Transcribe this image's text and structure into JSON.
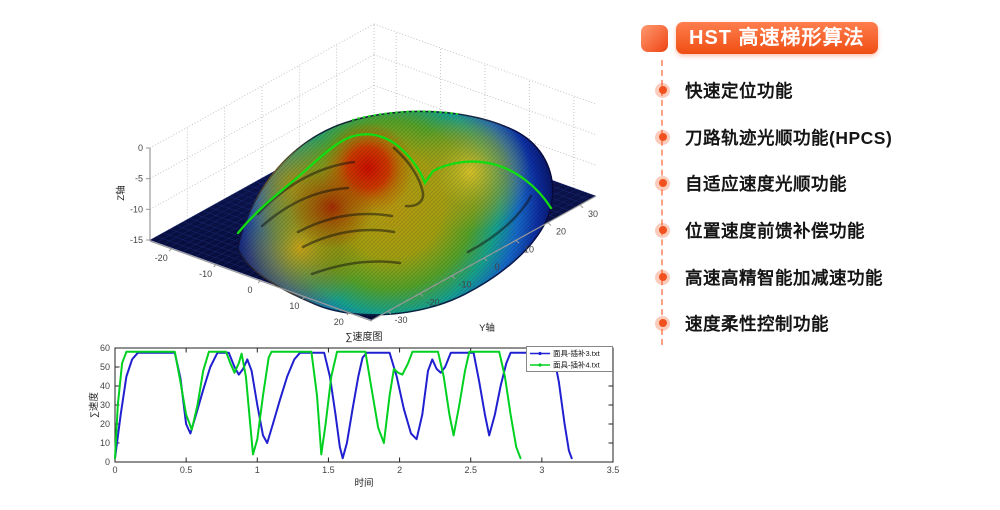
{
  "accent": {
    "orange": "#f1511f",
    "orange_light": "#ff8a5c",
    "dash_line": "#ffa184"
  },
  "panel": {
    "title": "HST 高速梯形算法",
    "items": [
      "快速定位功能",
      "刀路轨迹光顺功能(HPCS)",
      "自适应速度光顺功能",
      "位置速度前馈补偿功能",
      "高速高精智能加减速功能",
      "速度柔性控制功能"
    ]
  },
  "chart_data": [
    {
      "type": "surface",
      "name": "face-mask-surface",
      "colormap": "jet",
      "background_floor_color": "#0a1148",
      "overlay": "green toolpath curves on surface",
      "xticks": [
        -20,
        -10,
        0,
        10,
        20
      ],
      "yticks": [
        -30,
        -20,
        -10,
        0,
        10,
        20,
        30
      ],
      "zticks": [
        0,
        -5,
        -10,
        -15
      ],
      "xlabel": "",
      "ylabel": "Y轴",
      "zlabel": "Z轴",
      "xlim": [
        -25,
        25
      ],
      "ylim": [
        -35,
        35
      ],
      "zlim": [
        -15,
        0
      ]
    },
    {
      "type": "line",
      "title": "∑速度图",
      "xlabel": "时间",
      "ylabel": "∑速度",
      "xlim": [
        0,
        3.5
      ],
      "ylim": [
        0,
        60
      ],
      "xticks": [
        0,
        0.5,
        1,
        1.5,
        2,
        2.5,
        3,
        3.5
      ],
      "yticks": [
        0,
        10,
        20,
        30,
        40,
        50,
        60
      ],
      "grid": false,
      "legend_position": "top-right",
      "series": [
        {
          "name": "面具-插补3.txt",
          "color": "#2020d0",
          "points": [
            [
              0,
              2
            ],
            [
              0.04,
              25
            ],
            [
              0.08,
              45
            ],
            [
              0.12,
              54
            ],
            [
              0.16,
              57.5
            ],
            [
              0.42,
              57.5
            ],
            [
              0.46,
              44
            ],
            [
              0.5,
              20
            ],
            [
              0.53,
              15
            ],
            [
              0.57,
              25
            ],
            [
              0.62,
              38
            ],
            [
              0.67,
              50
            ],
            [
              0.72,
              57.5
            ],
            [
              0.8,
              57.5
            ],
            [
              0.84,
              50
            ],
            [
              0.87,
              46
            ],
            [
              0.9,
              49
            ],
            [
              0.93,
              54
            ],
            [
              0.96,
              48
            ],
            [
              1.0,
              30
            ],
            [
              1.04,
              14
            ],
            [
              1.07,
              10
            ],
            [
              1.11,
              20
            ],
            [
              1.16,
              33
            ],
            [
              1.21,
              45
            ],
            [
              1.26,
              54
            ],
            [
              1.3,
              57.5
            ],
            [
              1.47,
              57.5
            ],
            [
              1.51,
              45
            ],
            [
              1.55,
              25
            ],
            [
              1.58,
              8
            ],
            [
              1.6,
              2
            ],
            [
              1.63,
              10
            ],
            [
              1.67,
              28
            ],
            [
              1.71,
              45
            ],
            [
              1.74,
              55
            ],
            [
              1.77,
              57.5
            ],
            [
              1.93,
              57.5
            ],
            [
              1.98,
              45
            ],
            [
              2.03,
              28
            ],
            [
              2.08,
              15
            ],
            [
              2.12,
              12
            ],
            [
              2.16,
              25
            ],
            [
              2.2,
              48
            ],
            [
              2.23,
              54
            ],
            [
              2.26,
              49
            ],
            [
              2.29,
              47
            ],
            [
              2.32,
              50
            ],
            [
              2.36,
              57.5
            ],
            [
              2.52,
              57.5
            ],
            [
              2.56,
              42
            ],
            [
              2.6,
              25
            ],
            [
              2.63,
              14
            ],
            [
              2.67,
              25
            ],
            [
              2.71,
              40
            ],
            [
              2.75,
              52
            ],
            [
              2.78,
              57.5
            ],
            [
              3.08,
              57.5
            ],
            [
              3.12,
              42
            ],
            [
              3.16,
              20
            ],
            [
              3.19,
              6
            ],
            [
              3.21,
              2
            ]
          ]
        },
        {
          "name": "面具-插补4.txt",
          "color": "#00d020",
          "points": [
            [
              0,
              2
            ],
            [
              0.02,
              30
            ],
            [
              0.05,
              52
            ],
            [
              0.08,
              58
            ],
            [
              0.42,
              58
            ],
            [
              0.46,
              42
            ],
            [
              0.5,
              25
            ],
            [
              0.54,
              17
            ],
            [
              0.58,
              30
            ],
            [
              0.62,
              48
            ],
            [
              0.66,
              58
            ],
            [
              0.78,
              58
            ],
            [
              0.81,
              52
            ],
            [
              0.84,
              47
            ],
            [
              0.87,
              52
            ],
            [
              0.89,
              57
            ],
            [
              0.92,
              45
            ],
            [
              0.95,
              20
            ],
            [
              0.97,
              4
            ],
            [
              1.0,
              12
            ],
            [
              1.04,
              35
            ],
            [
              1.08,
              55
            ],
            [
              1.1,
              58
            ],
            [
              1.38,
              58
            ],
            [
              1.42,
              35
            ],
            [
              1.45,
              4
            ],
            [
              1.48,
              20
            ],
            [
              1.52,
              45
            ],
            [
              1.56,
              58
            ],
            [
              1.76,
              58
            ],
            [
              1.8,
              40
            ],
            [
              1.85,
              18
            ],
            [
              1.89,
              10
            ],
            [
              1.93,
              35
            ],
            [
              1.96,
              49
            ],
            [
              1.99,
              47
            ],
            [
              2.02,
              46
            ],
            [
              2.06,
              52
            ],
            [
              2.09,
              58
            ],
            [
              2.27,
              58
            ],
            [
              2.31,
              45
            ],
            [
              2.35,
              25
            ],
            [
              2.38,
              14
            ],
            [
              2.42,
              30
            ],
            [
              2.46,
              48
            ],
            [
              2.49,
              58
            ],
            [
              2.7,
              58
            ],
            [
              2.74,
              45
            ],
            [
              2.78,
              25
            ],
            [
              2.82,
              8
            ],
            [
              2.85,
              2
            ]
          ]
        }
      ]
    }
  ]
}
